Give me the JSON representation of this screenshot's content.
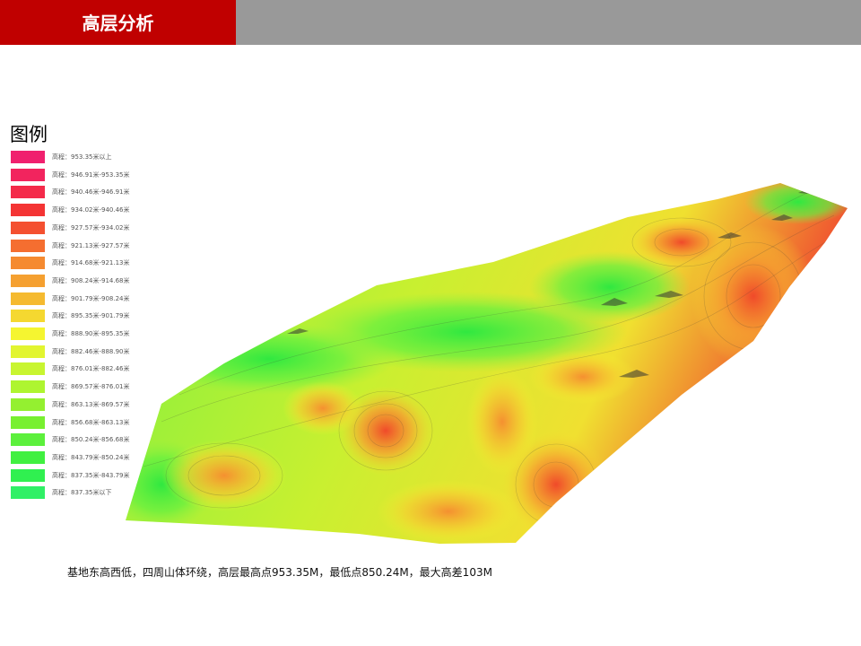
{
  "header": {
    "title": "高层分析"
  },
  "legend": {
    "title": "图例",
    "items": [
      {
        "label": "高程：953.35米以上",
        "color": "#f0206e"
      },
      {
        "label": "高程：946.91米-953.35米",
        "color": "#f2245e"
      },
      {
        "label": "高程：940.46米-946.91米",
        "color": "#f42a4a"
      },
      {
        "label": "高程：934.02米-940.46米",
        "color": "#f43434"
      },
      {
        "label": "高程：927.57米-934.02米",
        "color": "#f45030"
      },
      {
        "label": "高程：921.13米-927.57米",
        "color": "#f56e30"
      },
      {
        "label": "高程：914.68米-921.13米",
        "color": "#f58a30"
      },
      {
        "label": "高程：908.24米-914.68米",
        "color": "#f5a030"
      },
      {
        "label": "高程：901.79米-908.24米",
        "color": "#f5ba30"
      },
      {
        "label": "高程：895.35米-901.79米",
        "color": "#f5d830"
      },
      {
        "label": "高程：888.90米-895.35米",
        "color": "#f5f530"
      },
      {
        "label": "高程：882.46米-888.90米",
        "color": "#e2f530"
      },
      {
        "label": "高程：876.01米-882.46米",
        "color": "#c8f530"
      },
      {
        "label": "高程：869.57米-876.01米",
        "color": "#aef530"
      },
      {
        "label": "高程：863.13米-869.57米",
        "color": "#94f030"
      },
      {
        "label": "高程：856.68米-863.13米",
        "color": "#78f030"
      },
      {
        "label": "高程：850.24米-856.68米",
        "color": "#5cf03c"
      },
      {
        "label": "高程：843.79米-850.24米",
        "color": "#40f040"
      },
      {
        "label": "高程：837.35米-843.79米",
        "color": "#30f050"
      },
      {
        "label": "高程：837.35米以下",
        "color": "#30f066"
      }
    ]
  },
  "caption": "基地东高西低，四周山体环绕，高层最高点953.35M，最低点850.24M，最大高差103M"
}
